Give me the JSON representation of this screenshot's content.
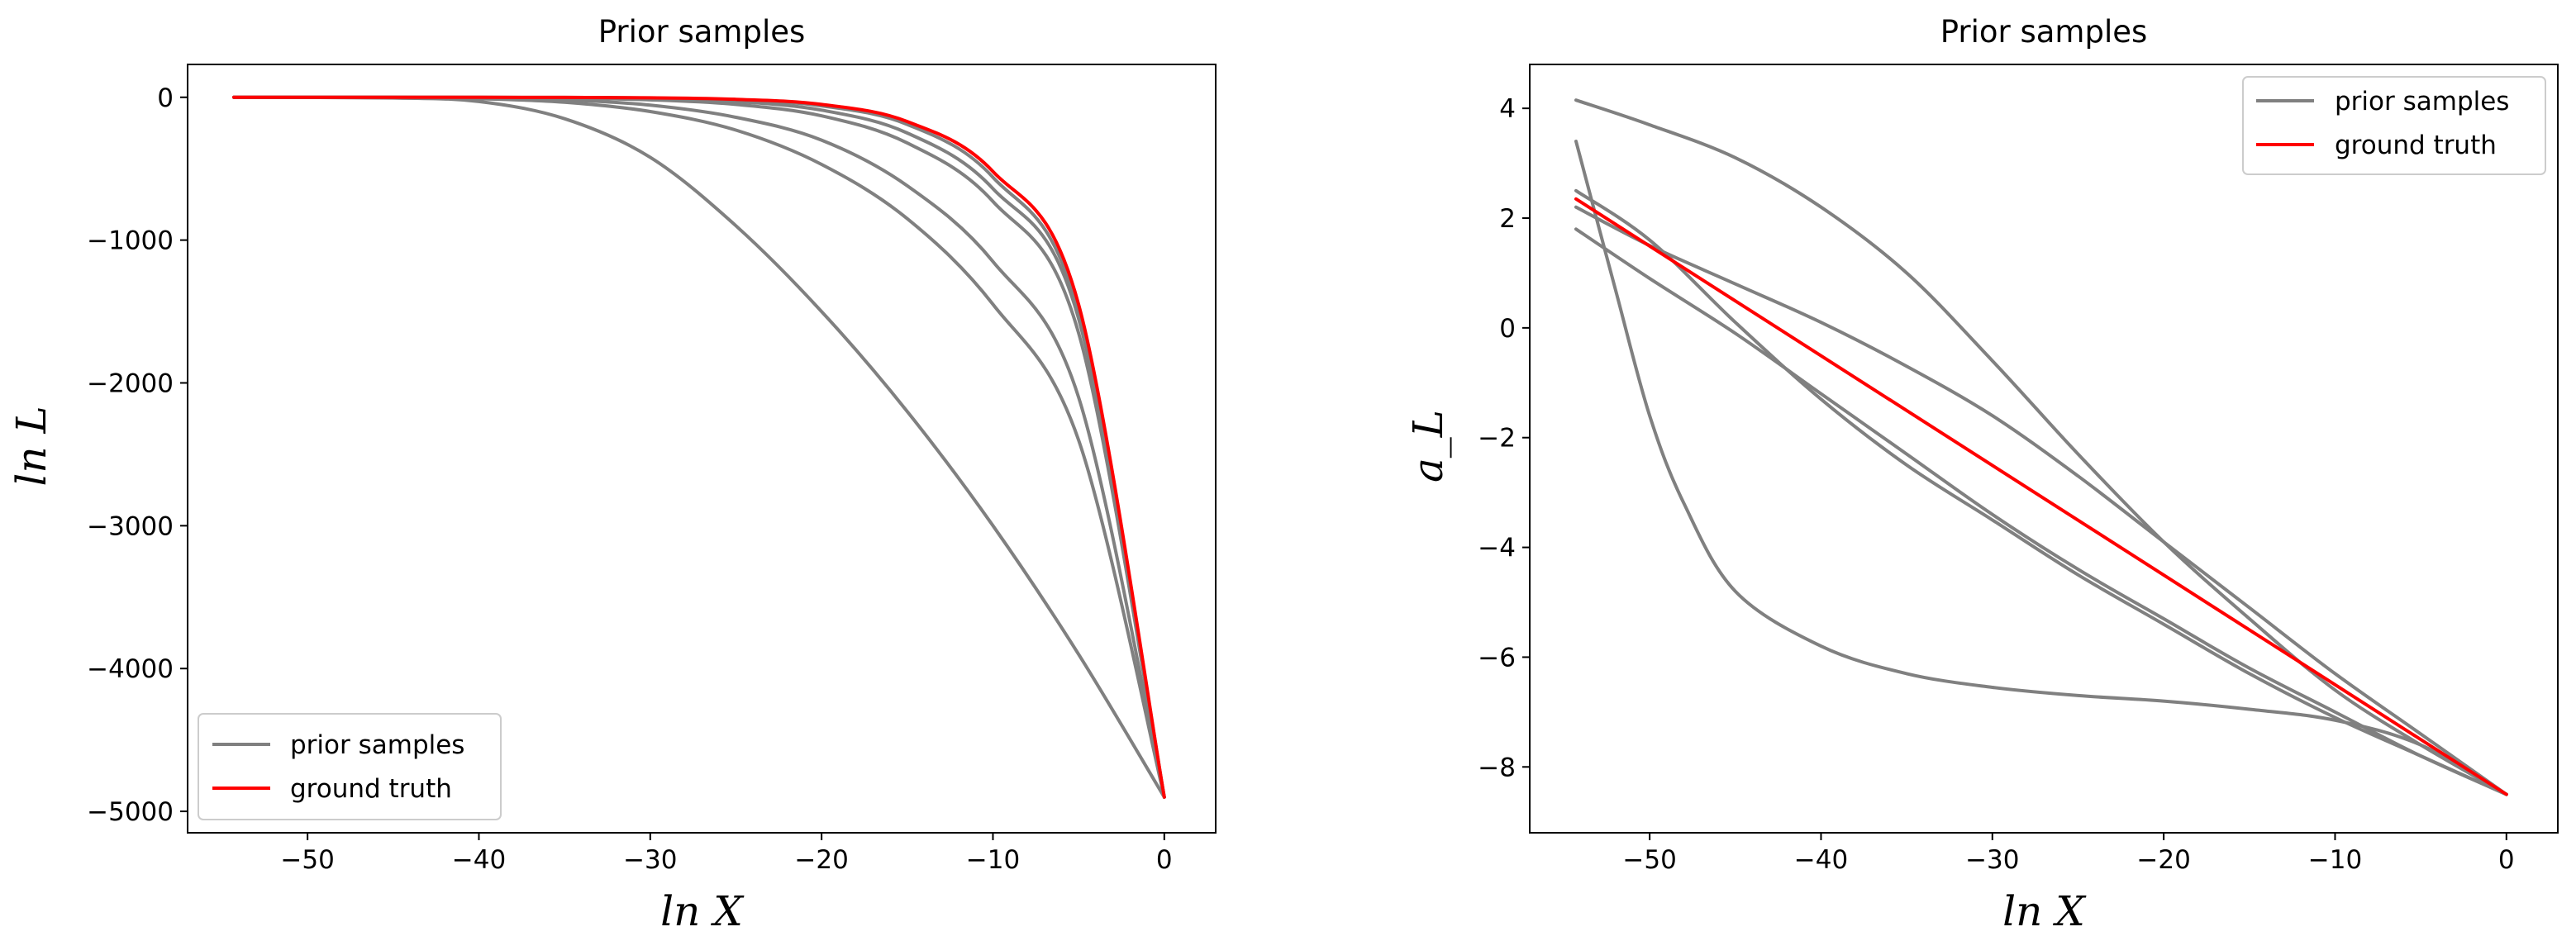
{
  "chart_data": [
    {
      "type": "line",
      "title": "Prior samples",
      "xlabel": "ln X",
      "ylabel": "ln L",
      "xlim": [
        -57,
        3
      ],
      "ylim": [
        -5150,
        230
      ],
      "xticks": [
        -50,
        -40,
        -30,
        -20,
        -10,
        0
      ],
      "xtick_labels": [
        "−50",
        "−40",
        "−30",
        "−20",
        "−10",
        "0"
      ],
      "yticks": [
        0,
        -1000,
        -2000,
        -3000,
        -4000,
        -5000
      ],
      "ytick_labels": [
        "0",
        "−1000",
        "−2000",
        "−3000",
        "−4000",
        "−5000"
      ],
      "grid": false,
      "legend": {
        "position": "lower-left",
        "entries": [
          {
            "label": "prior samples",
            "color": "#808080"
          },
          {
            "label": "ground truth",
            "color": "#ff0000"
          }
        ]
      },
      "series": [
        {
          "name": "prior samples",
          "color": "#808080",
          "x": [
            -54.3,
            -45,
            -40,
            -35,
            -30,
            -25,
            -20,
            -15,
            -10,
            -5,
            0
          ],
          "y": [
            0,
            -5,
            -30,
            -150,
            -420,
            -900,
            -1500,
            -2200,
            -3000,
            -3900,
            -4900
          ]
        },
        {
          "name": "prior samples",
          "color": "#808080",
          "x": [
            -54.3,
            -45,
            -40,
            -35,
            -30,
            -25,
            -20,
            -15,
            -10,
            -5,
            0
          ],
          "y": [
            0,
            -2,
            -10,
            -35,
            -100,
            -230,
            -470,
            -850,
            -1450,
            -2400,
            -4900
          ]
        },
        {
          "name": "prior samples",
          "color": "#808080",
          "x": [
            -54.3,
            -45,
            -40,
            -35,
            -30,
            -25,
            -20,
            -15,
            -10,
            -5,
            0
          ],
          "y": [
            0,
            -1,
            -5,
            -18,
            -55,
            -140,
            -300,
            -620,
            -1150,
            -2100,
            -4900
          ]
        },
        {
          "name": "prior samples",
          "color": "#808080",
          "x": [
            -54.3,
            -45,
            -40,
            -35,
            -30,
            -25,
            -20,
            -15,
            -10,
            -5,
            0
          ],
          "y": [
            0,
            0,
            -2,
            -6,
            -18,
            -50,
            -130,
            -320,
            -730,
            -1650,
            -4900
          ]
        },
        {
          "name": "prior samples",
          "color": "#808080",
          "x": [
            -54.3,
            -45,
            -40,
            -35,
            -30,
            -25,
            -20,
            -15,
            -10,
            -5,
            0
          ],
          "y": [
            0,
            0,
            -1,
            -3,
            -10,
            -30,
            -90,
            -250,
            -640,
            -1550,
            -4900
          ]
        },
        {
          "name": "prior samples",
          "color": "#808080",
          "x": [
            -54.3,
            -45,
            -40,
            -35,
            -30,
            -25,
            -20,
            -15,
            -10,
            -5,
            0
          ],
          "y": [
            0,
            0,
            0,
            -1,
            -5,
            -18,
            -60,
            -190,
            -560,
            -1500,
            -4900
          ]
        },
        {
          "name": "ground truth",
          "color": "#ff0000",
          "x": [
            -54.3,
            -45,
            -40,
            -35,
            -30,
            -25,
            -20,
            -15,
            -10,
            -5,
            0
          ],
          "y": [
            0,
            0,
            0,
            -1,
            -4,
            -14,
            -50,
            -170,
            -520,
            -1450,
            -4900
          ]
        }
      ]
    },
    {
      "type": "line",
      "title": "Prior samples",
      "xlabel": "ln X",
      "ylabel": "a_L",
      "xlim": [
        -57,
        3
      ],
      "ylim": [
        -9.2,
        4.8
      ],
      "xticks": [
        -50,
        -40,
        -30,
        -20,
        -10,
        0
      ],
      "xtick_labels": [
        "−50",
        "−40",
        "−30",
        "−20",
        "−10",
        "0"
      ],
      "yticks": [
        4,
        2,
        0,
        -2,
        -4,
        -6,
        -8
      ],
      "ytick_labels": [
        "4",
        "2",
        "0",
        "−2",
        "−4",
        "−6",
        "−8"
      ],
      "grid": false,
      "legend": {
        "position": "upper-right",
        "entries": [
          {
            "label": "prior samples",
            "color": "#808080"
          },
          {
            "label": "ground truth",
            "color": "#ff0000"
          }
        ]
      },
      "series": [
        {
          "name": "prior samples",
          "color": "#808080",
          "x": [
            -54.3,
            -50,
            -45,
            -40,
            -35,
            -30,
            -25,
            -20,
            -15,
            -10,
            -5,
            0
          ],
          "y": [
            4.15,
            3.7,
            3.1,
            2.2,
            1.0,
            -0.6,
            -2.3,
            -3.9,
            -5.3,
            -6.6,
            -7.6,
            -8.5
          ]
        },
        {
          "name": "prior samples",
          "color": "#808080",
          "x": [
            -54.3,
            -50,
            -45,
            -40,
            -35,
            -30,
            -25,
            -20,
            -15,
            -10,
            -5,
            0
          ],
          "y": [
            2.2,
            1.5,
            0.8,
            0.1,
            -0.7,
            -1.6,
            -2.7,
            -3.9,
            -5.1,
            -6.3,
            -7.4,
            -8.5
          ]
        },
        {
          "name": "prior samples",
          "color": "#808080",
          "x": [
            -54.3,
            -50,
            -45,
            -40,
            -35,
            -30,
            -25,
            -20,
            -15,
            -10,
            -5,
            0
          ],
          "y": [
            2.5,
            1.6,
            0.1,
            -1.3,
            -2.5,
            -3.5,
            -4.5,
            -5.4,
            -6.3,
            -7.1,
            -7.8,
            -8.5
          ]
        },
        {
          "name": "prior samples",
          "color": "#808080",
          "x": [
            -54.3,
            -50,
            -45,
            -40,
            -35,
            -30,
            -25,
            -20,
            -15,
            -10,
            -5,
            0
          ],
          "y": [
            1.8,
            0.9,
            -0.1,
            -1.2,
            -2.3,
            -3.4,
            -4.4,
            -5.3,
            -6.2,
            -7.0,
            -7.8,
            -8.5
          ]
        },
        {
          "name": "prior samples",
          "color": "#808080",
          "x": [
            -54.3,
            -52,
            -50,
            -48,
            -45,
            -40,
            -35,
            -30,
            -25,
            -20,
            -15,
            -10,
            -5,
            0
          ],
          "y": [
            3.4,
            0.7,
            -1.6,
            -3.2,
            -4.8,
            -5.8,
            -6.3,
            -6.55,
            -6.7,
            -6.8,
            -6.95,
            -7.15,
            -7.6,
            -8.5
          ]
        },
        {
          "name": "ground truth",
          "color": "#ff0000",
          "x": [
            -54.3,
            0
          ],
          "y": [
            2.35,
            -8.5
          ]
        }
      ]
    }
  ]
}
